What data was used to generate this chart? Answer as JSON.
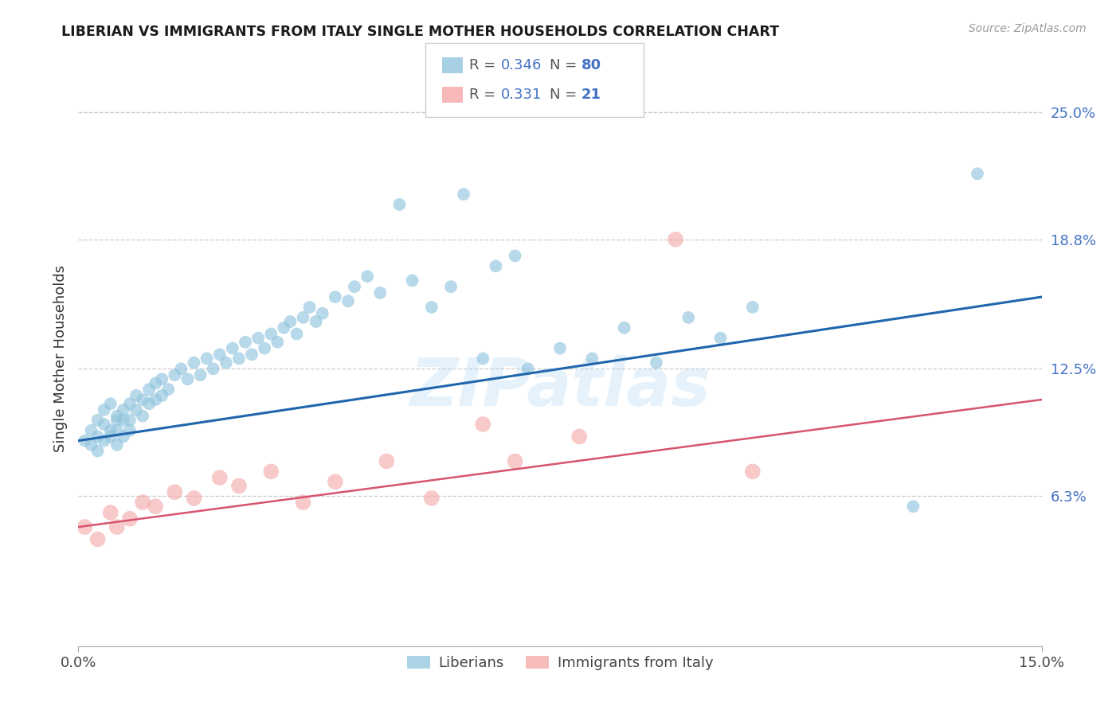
{
  "title": "LIBERIAN VS IMMIGRANTS FROM ITALY SINGLE MOTHER HOUSEHOLDS CORRELATION CHART",
  "source": "Source: ZipAtlas.com",
  "ylabel": "Single Mother Households",
  "ytick_labels": [
    "25.0%",
    "18.8%",
    "12.5%",
    "6.3%"
  ],
  "ytick_values": [
    0.25,
    0.188,
    0.125,
    0.063
  ],
  "xlim": [
    0.0,
    0.15
  ],
  "ylim": [
    -0.01,
    0.27
  ],
  "liberian_R": 0.346,
  "liberian_N": 80,
  "italy_R": 0.331,
  "italy_N": 21,
  "liberian_color": "#92c5de",
  "italy_color": "#f4a6a6",
  "line_liberian_color": "#2166ac",
  "line_italy_color": "#d6546e",
  "watermark": "ZIPatlas",
  "liberian_x": [
    0.001,
    0.002,
    0.002,
    0.003,
    0.003,
    0.003,
    0.004,
    0.004,
    0.004,
    0.005,
    0.005,
    0.005,
    0.006,
    0.006,
    0.006,
    0.006,
    0.007,
    0.007,
    0.007,
    0.008,
    0.008,
    0.008,
    0.009,
    0.009,
    0.01,
    0.01,
    0.011,
    0.011,
    0.012,
    0.012,
    0.013,
    0.013,
    0.014,
    0.015,
    0.016,
    0.017,
    0.018,
    0.019,
    0.02,
    0.021,
    0.022,
    0.023,
    0.024,
    0.025,
    0.026,
    0.027,
    0.028,
    0.029,
    0.03,
    0.031,
    0.032,
    0.033,
    0.034,
    0.035,
    0.036,
    0.037,
    0.038,
    0.04,
    0.042,
    0.043,
    0.045,
    0.047,
    0.05,
    0.052,
    0.055,
    0.058,
    0.06,
    0.063,
    0.065,
    0.068,
    0.07,
    0.075,
    0.08,
    0.085,
    0.09,
    0.095,
    0.1,
    0.105,
    0.13,
    0.14
  ],
  "liberian_y": [
    0.09,
    0.095,
    0.088,
    0.1,
    0.092,
    0.085,
    0.098,
    0.105,
    0.09,
    0.108,
    0.095,
    0.092,
    0.1,
    0.095,
    0.102,
    0.088,
    0.105,
    0.1,
    0.092,
    0.108,
    0.1,
    0.095,
    0.112,
    0.105,
    0.11,
    0.102,
    0.115,
    0.108,
    0.118,
    0.11,
    0.12,
    0.112,
    0.115,
    0.122,
    0.125,
    0.12,
    0.128,
    0.122,
    0.13,
    0.125,
    0.132,
    0.128,
    0.135,
    0.13,
    0.138,
    0.132,
    0.14,
    0.135,
    0.142,
    0.138,
    0.145,
    0.148,
    0.142,
    0.15,
    0.155,
    0.148,
    0.152,
    0.16,
    0.158,
    0.165,
    0.17,
    0.162,
    0.205,
    0.168,
    0.155,
    0.165,
    0.21,
    0.13,
    0.175,
    0.18,
    0.125,
    0.135,
    0.13,
    0.145,
    0.128,
    0.15,
    0.14,
    0.155,
    0.058,
    0.22
  ],
  "italy_x": [
    0.001,
    0.003,
    0.005,
    0.006,
    0.008,
    0.01,
    0.012,
    0.015,
    0.018,
    0.022,
    0.025,
    0.03,
    0.035,
    0.04,
    0.048,
    0.055,
    0.063,
    0.068,
    0.078,
    0.093,
    0.105
  ],
  "italy_y": [
    0.048,
    0.042,
    0.055,
    0.048,
    0.052,
    0.06,
    0.058,
    0.065,
    0.062,
    0.072,
    0.068,
    0.075,
    0.06,
    0.07,
    0.08,
    0.062,
    0.098,
    0.08,
    0.092,
    0.188,
    0.075
  ],
  "lib_line_x0": 0.0,
  "lib_line_y0": 0.09,
  "lib_line_x1": 0.15,
  "lib_line_y1": 0.16,
  "ita_line_x0": 0.0,
  "ita_line_y0": 0.048,
  "ita_line_x1": 0.15,
  "ita_line_y1": 0.11
}
